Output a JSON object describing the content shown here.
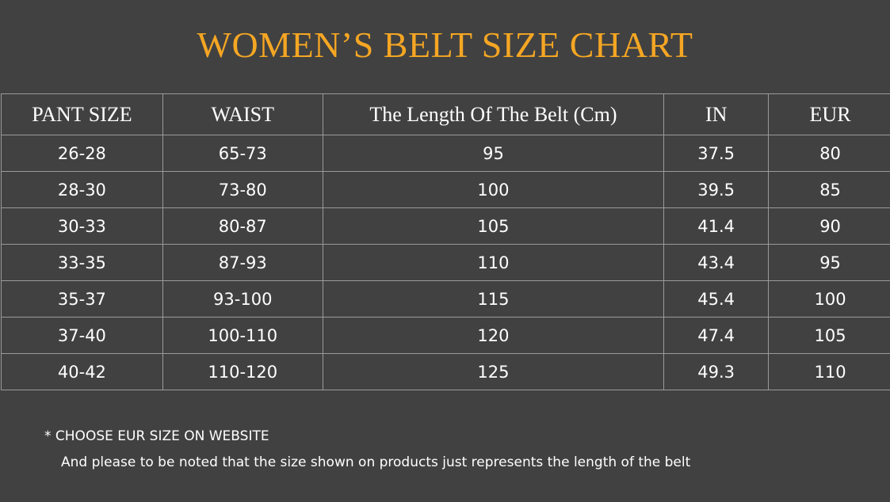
{
  "title": "WOMEN’S BELT SIZE CHART",
  "headers": [
    "PANT SIZE",
    "WAIST",
    "The Length Of The Belt (Cm)",
    "IN",
    "EUR"
  ],
  "rows": [
    [
      "26-28",
      "65-73",
      "95",
      "37.5",
      "80"
    ],
    [
      "28-30",
      "73-80",
      "100",
      "39.5",
      "85"
    ],
    [
      "30-33",
      "80-87",
      "105",
      "41.4",
      "90"
    ],
    [
      "33-35",
      "87-93",
      "110",
      "43.4",
      "95"
    ],
    [
      "35-37",
      "93-100",
      "115",
      "45.4",
      "100"
    ],
    [
      "37-40",
      "100-110",
      "120",
      "47.4",
      "105"
    ],
    [
      "40-42",
      "110-120",
      "125",
      "49.3",
      "110"
    ]
  ],
  "notes": {
    "line1": "*  CHOOSE EUR SIZE ON WEBSITE",
    "line2": "And please to be noted that the size shown on products just represents the length of the belt"
  },
  "colors": {
    "background": "#414141",
    "title": "#f5a623",
    "grid": "#9a9a9a",
    "text": "#ffffff"
  }
}
